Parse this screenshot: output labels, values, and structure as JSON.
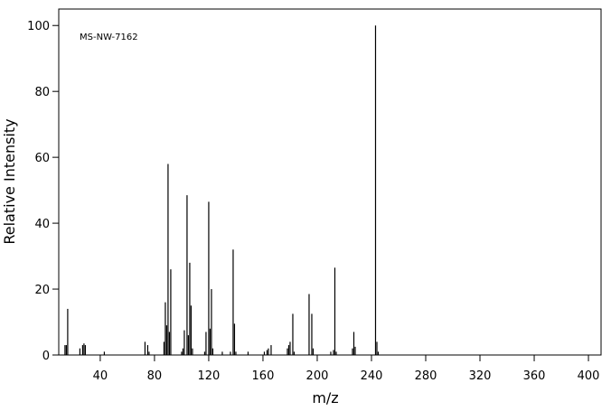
{
  "chart_data": {
    "type": "stick",
    "annotation": "MS-NW-7162",
    "xlabel": "m/z",
    "ylabel": "Relative Intensity",
    "x": [
      14,
      15,
      16,
      25,
      27,
      28,
      29,
      43,
      73,
      75,
      76,
      87,
      88,
      89,
      90,
      91,
      92,
      100,
      101,
      102,
      104,
      105,
      106,
      107,
      108,
      117,
      118,
      120,
      121,
      122,
      123,
      130,
      136,
      138,
      139,
      140,
      149,
      161,
      163,
      164,
      166,
      178,
      179,
      180,
      182,
      183,
      194,
      196,
      197,
      210,
      212,
      213,
      214,
      226,
      227,
      228,
      243,
      244,
      245
    ],
    "values": [
      3,
      3,
      14,
      2,
      3,
      3.5,
      3,
      1,
      4,
      3,
      1,
      4,
      16,
      9,
      58,
      7,
      26,
      1,
      2,
      7.5,
      48.5,
      6,
      28,
      15,
      2,
      1,
      7,
      46.5,
      8,
      20,
      2,
      1,
      1,
      32,
      9.5,
      1,
      1,
      1,
      1.5,
      2,
      3,
      2,
      3,
      4,
      12.5,
      1,
      18.5,
      12.5,
      2,
      1,
      1.5,
      26.5,
      1,
      2,
      7,
      2.5,
      100,
      4,
      1
    ],
    "color": "#000000",
    "xlim": [
      9.4,
      409.3
    ],
    "xticks": [
      40,
      80,
      120,
      160,
      200,
      240,
      280,
      320,
      360,
      400
    ],
    "ylim": [
      0,
      105
    ],
    "yticks": [
      0,
      20,
      40,
      60,
      80,
      100
    ]
  }
}
